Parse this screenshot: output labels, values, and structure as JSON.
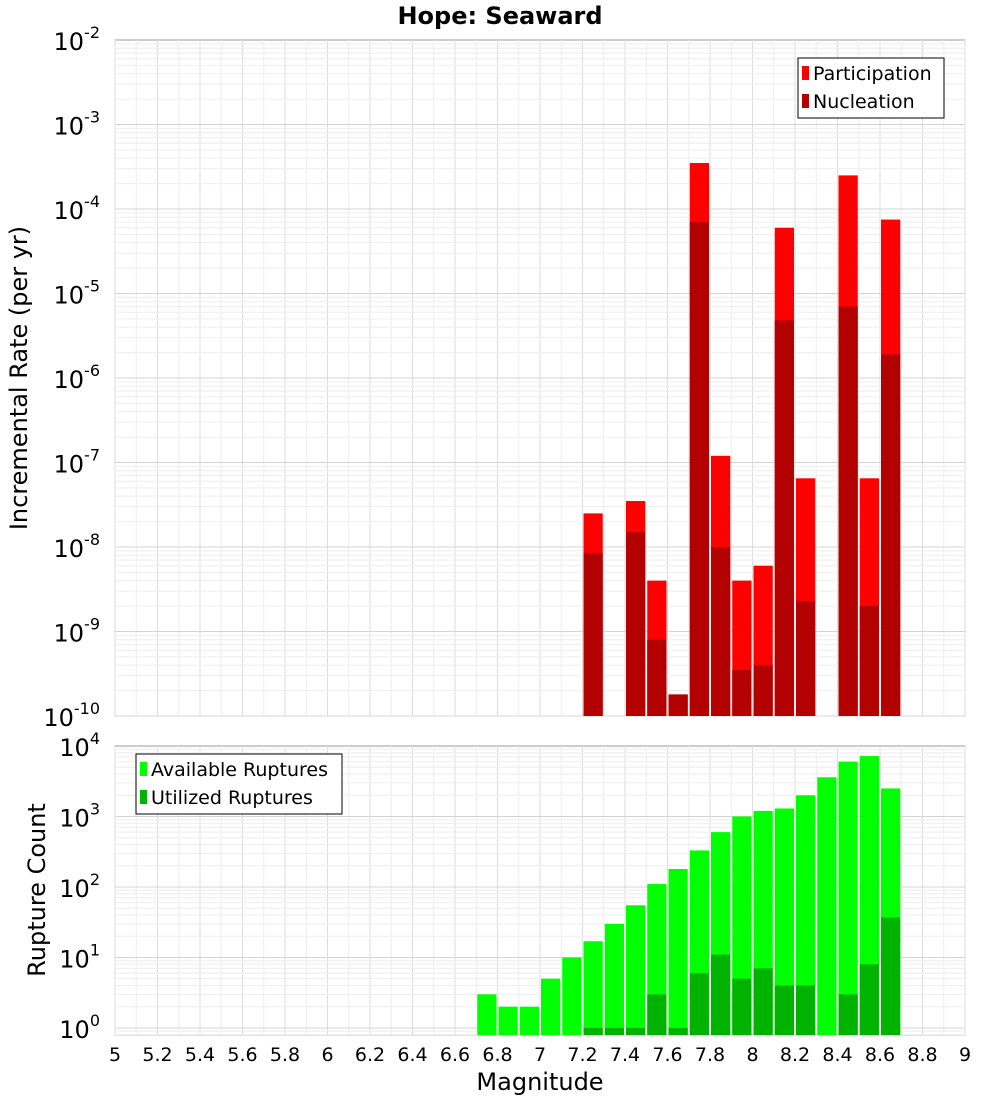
{
  "chart_data": {
    "type": "bar",
    "title": "Hope: Seaward",
    "xlabel": "Magnitude",
    "xlim": [
      5,
      9
    ],
    "xticks": [
      "5",
      "5.2",
      "5.4",
      "5.6",
      "5.8",
      "6",
      "6.2",
      "6.4",
      "6.6",
      "6.8",
      "7",
      "7.2",
      "7.4",
      "7.6",
      "7.8",
      "8",
      "8.2",
      "8.4",
      "8.6",
      "8.8",
      "9"
    ],
    "bin_width": 0.1,
    "panels": [
      {
        "ylabel": "Incremental Rate (per yr)",
        "yscale": "log",
        "ylim_exp": [
          -10,
          -2
        ],
        "yticks_exp": [
          "-10",
          "-9",
          "-8",
          "-7",
          "-6",
          "-5",
          "-4",
          "-3",
          "-2"
        ],
        "legend_position": "top-right",
        "grid": true,
        "series": [
          {
            "name": "Participation",
            "color": "#ff0000",
            "x": [
              7.25,
              7.45,
              7.55,
              7.65,
              7.75,
              7.85,
              7.95,
              8.05,
              8.15,
              8.25,
              8.45,
              8.55,
              8.65
            ],
            "values": [
              2.5e-08,
              3.5e-08,
              4e-09,
              1.8e-10,
              0.00035,
              1.2e-07,
              4e-09,
              6e-09,
              6e-05,
              6.5e-08,
              0.00025,
              6.5e-08,
              7.5e-05
            ]
          },
          {
            "name": "Nucleation",
            "color": "#b30000",
            "x": [
              7.25,
              7.45,
              7.55,
              7.65,
              7.75,
              7.85,
              7.95,
              8.05,
              8.15,
              8.25,
              8.45,
              8.55,
              8.65
            ],
            "values": [
              8.5e-09,
              1.5e-08,
              8e-10,
              1.8e-10,
              7e-05,
              1e-08,
              3.5e-10,
              4e-10,
              4.8e-06,
              2.3e-09,
              7e-06,
              2e-09,
              1.9e-06
            ]
          }
        ]
      },
      {
        "ylabel": "Rupture Count",
        "yscale": "log",
        "ylim_exp": [
          -0.1,
          4
        ],
        "yticks_exp": [
          "0",
          "1",
          "2",
          "3",
          "4"
        ],
        "legend_position": "top-left",
        "grid": true,
        "series": [
          {
            "name": "Available Ruptures",
            "color": "#00ff00",
            "x": [
              6.75,
              6.85,
              6.95,
              7.05,
              7.15,
              7.25,
              7.35,
              7.45,
              7.55,
              7.65,
              7.75,
              7.85,
              7.95,
              8.05,
              8.15,
              8.25,
              8.35,
              8.45,
              8.55,
              8.65
            ],
            "values": [
              3,
              2,
              2,
              5,
              10,
              17,
              30,
              55,
              110,
              180,
              330,
              600,
              1000,
              1200,
              1300,
              2000,
              3600,
              6000,
              7200,
              2500
            ]
          },
          {
            "name": "Utilized Ruptures",
            "color": "#00b300",
            "x": [
              7.25,
              7.35,
              7.45,
              7.55,
              7.65,
              7.75,
              7.85,
              7.95,
              8.05,
              8.15,
              8.25,
              8.45,
              8.55,
              8.65
            ],
            "values": [
              1,
              1,
              1,
              3,
              1,
              6,
              11,
              5,
              7,
              4,
              4,
              3,
              8,
              37
            ]
          }
        ]
      }
    ]
  }
}
